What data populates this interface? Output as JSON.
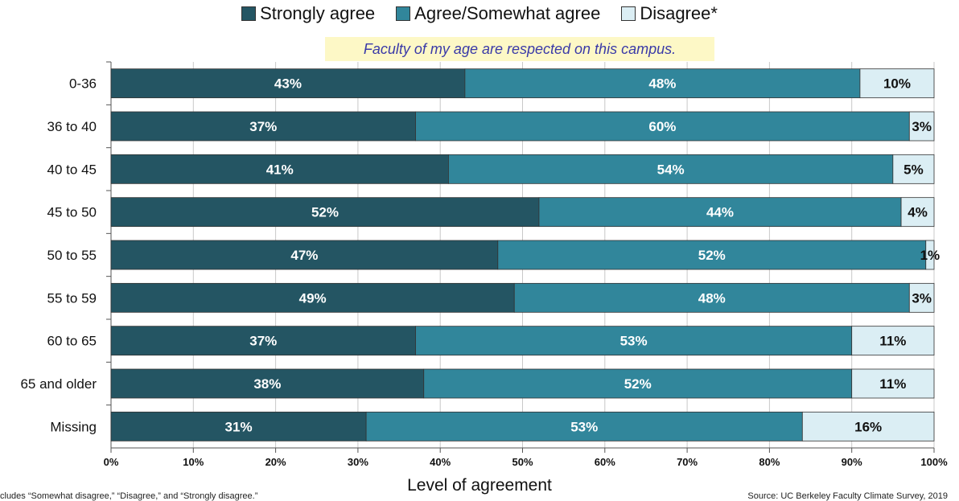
{
  "chart_data": {
    "type": "bar",
    "orientation": "horizontal",
    "stacked": true,
    "subtitle": "Faculty of my age are respected on this campus.",
    "xlabel": "Level of agreement",
    "ylabel": "",
    "xlim": [
      0,
      100
    ],
    "x_ticks": [
      "0%",
      "10%",
      "20%",
      "30%",
      "40%",
      "50%",
      "60%",
      "70%",
      "80%",
      "90%",
      "100%"
    ],
    "grid": "vertical",
    "legend_position": "top",
    "categories": [
      "0-36",
      "36 to 40",
      "40 to 45",
      "45 to 50",
      "50 to 55",
      "55 to 59",
      "60 to 65",
      "65 and older",
      "Missing"
    ],
    "series": [
      {
        "name": "Strongly agree",
        "color": "#245563",
        "values": [
          43,
          37,
          41,
          52,
          47,
          49,
          37,
          38,
          31
        ],
        "labels": [
          "43%",
          "37%",
          "41%",
          "52%",
          "47%",
          "49%",
          "37%",
          "38%",
          "31%"
        ]
      },
      {
        "name": "Agree/Somewhat agree",
        "color": "#31869b",
        "values": [
          48,
          60,
          54,
          44,
          52,
          48,
          53,
          52,
          53
        ],
        "labels": [
          "48%",
          "60%",
          "54%",
          "44%",
          "52%",
          "48%",
          "53%",
          "52%",
          "53%"
        ]
      },
      {
        "name": "Disagree*",
        "color": "#dbeef4",
        "values": [
          10,
          3,
          5,
          4,
          1,
          3,
          11,
          11,
          16
        ],
        "labels": [
          "10%",
          "3%",
          "5%",
          "4%",
          "1%",
          "3%",
          "11%",
          "11%",
          "16%"
        ]
      }
    ],
    "footnote": "cludes “Somewhat disagree,” “Disagree,” and “Strongly disagree.”",
    "source": "Source: UC Berkeley Faculty Climate Survey, 2019"
  }
}
